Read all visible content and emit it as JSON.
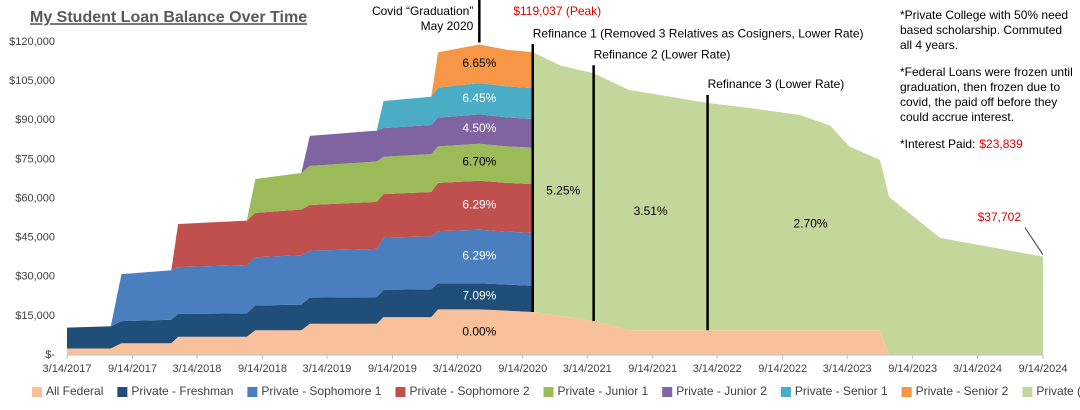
{
  "chart_data": {
    "type": "stacked-area",
    "title": "My Student Loan Balance Over Time",
    "x": [
      "2017-03-14",
      "2017-07-15",
      "2017-08-14",
      "2018-01-01",
      "2018-01-20",
      "2018-08-01",
      "2018-08-25",
      "2019-01-01",
      "2019-01-25",
      "2019-08-01",
      "2019-08-20",
      "2020-01-01",
      "2020-01-20",
      "2020-05-15",
      "2020-08-01",
      "2020-10-10",
      "2020-10-12",
      "2020-12-28",
      "2021-04-01",
      "2021-07-10",
      "2021-10-05",
      "2022-02-15",
      "2022-06-14",
      "2022-11-01",
      "2023-01-25",
      "2023-03-20",
      "2023-06-14",
      "2023-07-10",
      "2023-11-30",
      "2024-09-14"
    ],
    "xlim": [
      "2017-03-14",
      "2024-09-14"
    ],
    "xticks": [
      {
        "value": "2017-03-14",
        "label": "3/14/2017"
      },
      {
        "value": "2017-09-14",
        "label": "9/14/2017"
      },
      {
        "value": "2018-03-14",
        "label": "3/14/2018"
      },
      {
        "value": "2018-09-14",
        "label": "9/14/2018"
      },
      {
        "value": "2019-03-14",
        "label": "3/14/2019"
      },
      {
        "value": "2019-09-14",
        "label": "9/14/2019"
      },
      {
        "value": "2020-03-14",
        "label": "3/14/2020"
      },
      {
        "value": "2020-09-14",
        "label": "9/14/2020"
      },
      {
        "value": "2021-03-14",
        "label": "3/14/2021"
      },
      {
        "value": "2021-09-14",
        "label": "9/14/2021"
      },
      {
        "value": "2022-03-14",
        "label": "3/14/2022"
      },
      {
        "value": "2022-09-14",
        "label": "9/14/2022"
      },
      {
        "value": "2023-03-14",
        "label": "3/14/2023"
      },
      {
        "value": "2023-09-14",
        "label": "9/14/2023"
      },
      {
        "value": "2024-03-14",
        "label": "3/14/2024"
      },
      {
        "value": "2024-09-14",
        "label": "9/14/2024"
      }
    ],
    "ylim": [
      0,
      120000
    ],
    "yticks": [
      {
        "value": 0,
        "label": "$-"
      },
      {
        "value": 15000,
        "label": "$15,000"
      },
      {
        "value": 30000,
        "label": "$30,000"
      },
      {
        "value": 45000,
        "label": "$45,000"
      },
      {
        "value": 60000,
        "label": "$60,000"
      },
      {
        "value": 75000,
        "label": "$75,000"
      },
      {
        "value": 90000,
        "label": "$90,000"
      },
      {
        "value": 105000,
        "label": "$105,000"
      },
      {
        "value": 120000,
        "label": "$120,000"
      }
    ],
    "grid": false,
    "legend": "bottom",
    "series": [
      {
        "name": "All Federal",
        "color": "#f8c09b",
        "rate": "0.00%",
        "values": [
          2500,
          2500,
          4500,
          4500,
          7000,
          7000,
          9500,
          9500,
          12000,
          12000,
          14500,
          14500,
          17500,
          17500,
          17000,
          16500,
          16500,
          15000,
          13000,
          9500,
          9500,
          9500,
          9500,
          9500,
          9500,
          9500,
          9500,
          0,
          0,
          0
        ]
      },
      {
        "name": "Private - Freshman",
        "color": "#1f4e79",
        "rate": "7.09%",
        "values": [
          8000,
          8500,
          8500,
          9000,
          8700,
          9000,
          9500,
          9800,
          10000,
          10200,
          10500,
          10700,
          10000,
          10000,
          10000,
          10000,
          0,
          0,
          0,
          0,
          0,
          0,
          0,
          0,
          0,
          0,
          0,
          0,
          0,
          0
        ]
      },
      {
        "name": "Private - Sophomore 1",
        "color": "#4a7ebf",
        "rate": "6.29%",
        "values": [
          0,
          0,
          18000,
          19000,
          18000,
          18500,
          18500,
          19000,
          18000,
          18500,
          20000,
          20300,
          20000,
          20500,
          20300,
          20300,
          0,
          0,
          0,
          0,
          0,
          0,
          0,
          0,
          0,
          0,
          0,
          0,
          0,
          0
        ]
      },
      {
        "name": "Private - Sophomore 2",
        "color": "#c0504d",
        "rate": "6.29%",
        "values": [
          0,
          0,
          0,
          0,
          16500,
          17000,
          17000,
          17500,
          17500,
          18000,
          16700,
          17000,
          18500,
          18800,
          18700,
          18700,
          0,
          0,
          0,
          0,
          0,
          0,
          0,
          0,
          0,
          0,
          0,
          0,
          0,
          0
        ]
      },
      {
        "name": "Private - Junior 1",
        "color": "#9bbb59",
        "rate": "6.70%",
        "values": [
          0,
          0,
          0,
          0,
          0,
          0,
          13000,
          14000,
          15000,
          15500,
          14300,
          14500,
          14000,
          14200,
          14000,
          14000,
          0,
          0,
          0,
          0,
          0,
          0,
          0,
          0,
          0,
          0,
          0,
          0,
          0,
          0
        ]
      },
      {
        "name": "Private - Junior 2",
        "color": "#8064a2",
        "rate": "4.50%",
        "values": [
          0,
          0,
          0,
          0,
          0,
          0,
          0,
          0,
          11500,
          11800,
          11000,
          11200,
          11000,
          11237,
          11100,
          11000,
          0,
          0,
          0,
          0,
          0,
          0,
          0,
          0,
          0,
          0,
          0,
          0,
          0,
          0
        ]
      },
      {
        "name": "Private - Senior 1",
        "color": "#4bacc6",
        "rate": "6.45%",
        "values": [
          0,
          0,
          0,
          0,
          0,
          0,
          0,
          0,
          0,
          0,
          10400,
          10800,
          11500,
          12000,
          11900,
          11800,
          0,
          0,
          0,
          0,
          0,
          0,
          0,
          0,
          0,
          0,
          0,
          0,
          0,
          0
        ]
      },
      {
        "name": "Private - Senior 2",
        "color": "#f79646",
        "rate": "6.65%",
        "values": [
          0,
          0,
          0,
          0,
          0,
          0,
          0,
          0,
          0,
          0,
          0,
          0,
          13500,
          14800,
          14000,
          13800,
          0,
          0,
          0,
          0,
          0,
          0,
          0,
          0,
          0,
          0,
          0,
          0,
          0,
          0
        ]
      },
      {
        "name": "Private (Refinanced)",
        "color": "#c4d79b",
        "values": [
          0,
          0,
          0,
          0,
          0,
          0,
          0,
          0,
          0,
          0,
          0,
          0,
          0,
          0,
          0,
          0,
          99600,
          96000,
          95000,
          92100,
          90200,
          87100,
          85200,
          82500,
          78500,
          70500,
          65300,
          60600,
          44900,
          37702
        ],
        "value_labels": [
          null,
          null,
          null,
          null,
          null,
          null,
          null,
          null,
          null,
          null,
          null,
          null,
          null,
          null,
          null,
          null,
          null,
          null,
          null,
          null,
          null,
          null,
          null,
          null,
          null,
          null,
          null,
          null,
          null,
          "$37,702"
        ]
      }
    ],
    "covid": {
      "lines": [
        "Covid “Graduation”",
        "May 2020"
      ],
      "x": "2020-05-15",
      "peak_label": "$119,037 (Peak)"
    },
    "refinances": [
      {
        "label": "Refinance 1 (Removed 3 Relatives as Cosigners, Lower Rate)",
        "x": "2020-10-12",
        "rate": "5.25%"
      },
      {
        "label": "Refinance 2 (Lower Rate)",
        "x": "2021-04-01",
        "rate": "3.51%"
      },
      {
        "label": "Refinance 3 (Lower Rate)",
        "x": "2022-02-15",
        "rate": "2.70%"
      }
    ],
    "notes": [
      {
        "lines": [
          "*Private College with 50% need",
          "based scholarship. Commuted",
          "all 4 years."
        ]
      },
      {
        "lines": [
          "*Federal Loans were frozen until",
          "graduation, then frozen due to",
          "covid, the paid off before they",
          "could accrue interest."
        ]
      }
    ],
    "interest_paid": {
      "label": "*Interest Paid:",
      "value": "$23,839"
    }
  }
}
